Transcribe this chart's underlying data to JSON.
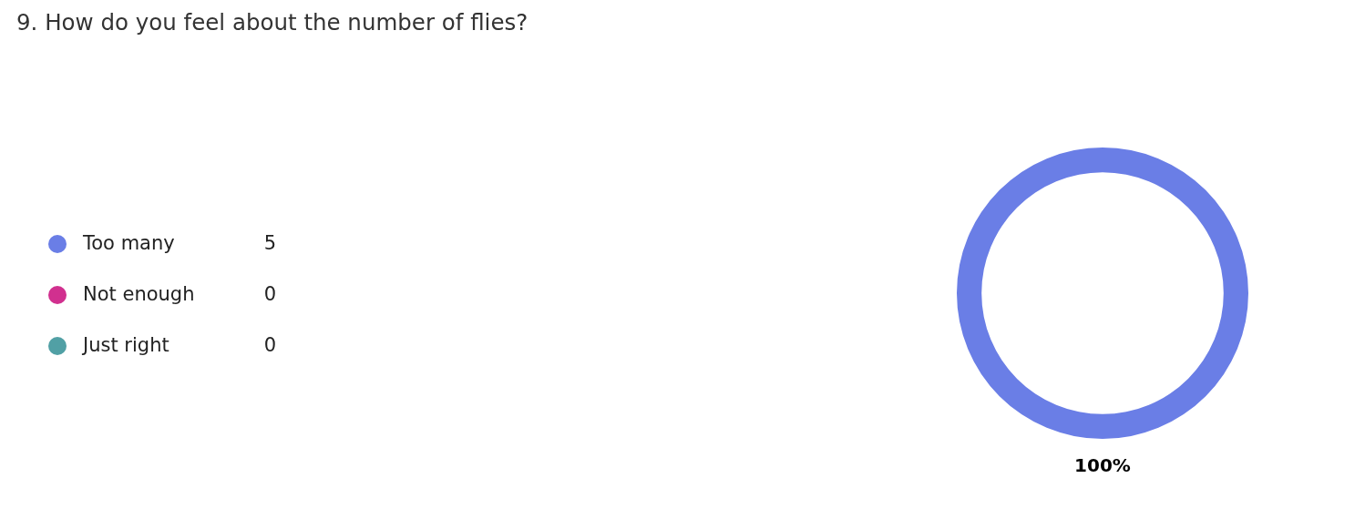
{
  "chart_data": {
    "type": "donut",
    "title": "9. How do you feel about the number of flies?",
    "categories": [
      "Too many",
      "Not enough",
      "Just right"
    ],
    "values": [
      100,
      0,
      0
    ],
    "colors": [
      "#6a7ee6",
      "#d1308f",
      "#51a0a5"
    ],
    "value_labels": [
      "100%",
      null,
      null
    ],
    "annotations": [
      "5",
      "0",
      "0"
    ],
    "legend": "left"
  }
}
